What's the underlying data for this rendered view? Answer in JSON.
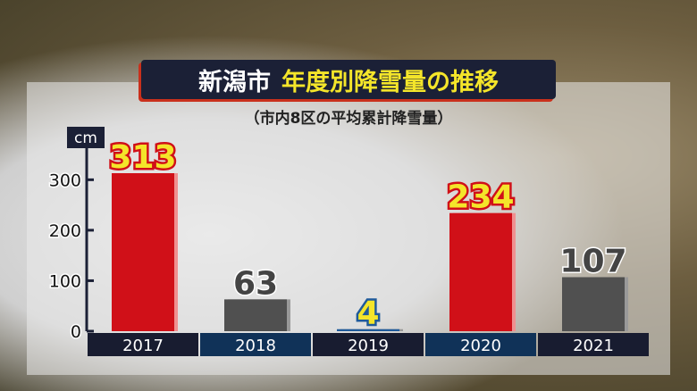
{
  "title": {
    "city": "新潟市",
    "main": "年度別降雪量の推移"
  },
  "subtitle": "（市内8区の平均累計降雪量）",
  "chart_data": {
    "type": "bar",
    "title": "新潟市 年度別降雪量の推移",
    "subtitle": "（市内8区の平均累計降雪量）",
    "ylabel": "cm",
    "categories": [
      "2017",
      "2018",
      "2019",
      "2020",
      "2021"
    ],
    "values": [
      313,
      63,
      4,
      234,
      107
    ],
    "ylim": [
      0,
      300
    ],
    "yticks": [
      0,
      100,
      200,
      300
    ],
    "bar_colors": [
      "#d01018",
      "#505050",
      "#1f5a9a",
      "#d01018",
      "#505050"
    ],
    "label_colors": [
      "#d01018",
      "#444444",
      "#1f5a9a",
      "#d01018",
      "#444444"
    ],
    "label_fill": [
      "#f4e52a",
      "#444444",
      "#f4e52a",
      "#f4e52a",
      "#444444"
    ],
    "category_band_colors": [
      "#181c30",
      "#103258",
      "#181c30",
      "#103258",
      "#181c30"
    ],
    "grid": false
  }
}
